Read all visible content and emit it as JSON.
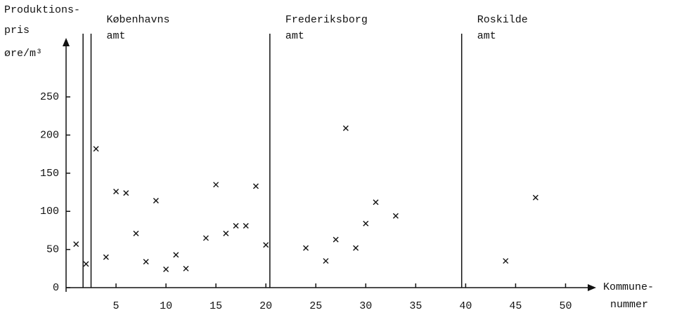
{
  "chart_data": {
    "type": "scatter",
    "y_label": [
      "Produktions-",
      "pris",
      "øre/m³"
    ],
    "x_label": [
      "Kommune-",
      "nummer"
    ],
    "regions": [
      {
        "lines": [
          "Københavns",
          "amt"
        ],
        "start": 2.5
      },
      {
        "lines": [
          "Frederiksborg",
          "amt"
        ],
        "start": 20.4
      },
      {
        "lines": [
          "Roskilde",
          "amt"
        ],
        "start": 39.6
      }
    ],
    "dividers": [
      1.7,
      2.5,
      20.4,
      39.6
    ],
    "x": [
      1,
      2,
      3,
      4,
      5,
      6,
      7,
      8,
      9,
      10,
      11,
      12,
      14,
      15,
      16,
      17,
      18,
      19,
      20,
      24,
      26,
      27,
      28,
      29,
      30,
      31,
      33,
      44,
      47
    ],
    "values": [
      57,
      31,
      182,
      40,
      126,
      124,
      71,
      34,
      114,
      24,
      43,
      25,
      65,
      135,
      71,
      81,
      81,
      133,
      56,
      52,
      35,
      63,
      209,
      52,
      84,
      112,
      94,
      35,
      118
    ],
    "color": "#111111",
    "xlim": [
      0,
      52.5
    ],
    "ylim": [
      0,
      320
    ],
    "xticks": [
      5,
      10,
      15,
      20,
      25,
      30,
      35,
      40,
      45,
      50
    ],
    "yticks": [
      0,
      50,
      100,
      150,
      200,
      250
    ]
  }
}
